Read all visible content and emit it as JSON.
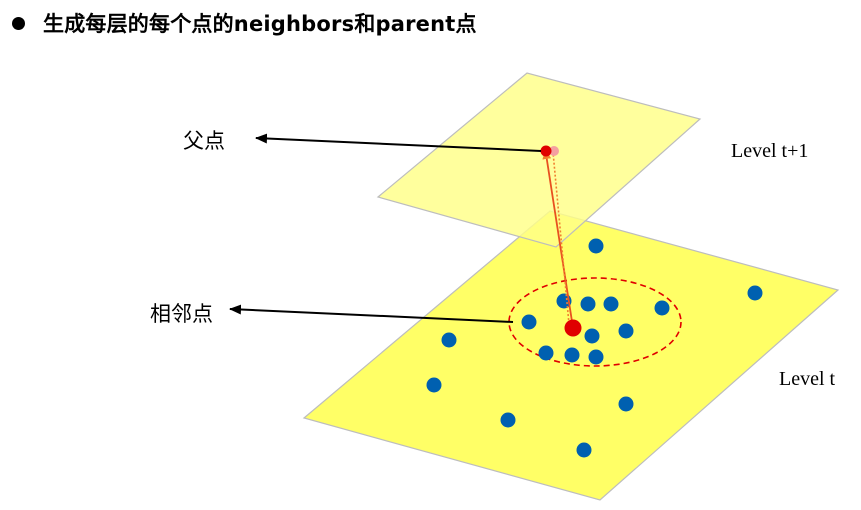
{
  "heading": {
    "bullet_icon": "filled-circle-bullet",
    "text": "生成每层的每个点的neighbors和parent点"
  },
  "labels": {
    "parent": "父点",
    "neighbors": "相邻点",
    "level_upper": "Level t+1",
    "level_lower": "Level t"
  },
  "colors": {
    "plane_fill": "#ffff66",
    "plane_upper_fill": "#ffff88",
    "plane_stroke": "#bdbdbd",
    "neighbor_point": "#0060b0",
    "center_point": "#e00000",
    "parent_point": "#e00000",
    "parent_ghost_point": "#f4a0a0",
    "neighborhood_circle": "#e00000",
    "parent_link_line": "#f08030",
    "dotted_link_line": "#f08030"
  }
}
